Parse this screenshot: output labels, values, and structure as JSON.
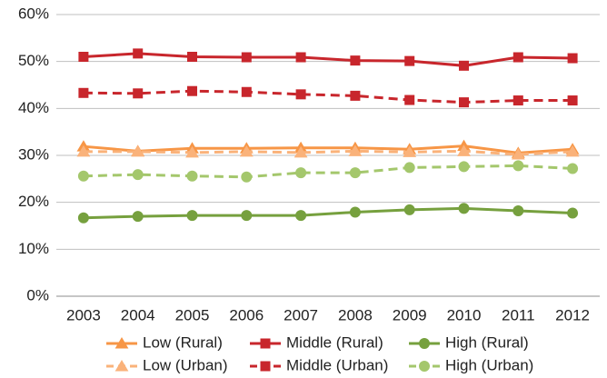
{
  "chart_data": {
    "type": "line",
    "categories": [
      "2003",
      "2004",
      "2005",
      "2006",
      "2007",
      "2008",
      "2009",
      "2010",
      "2011",
      "2012"
    ],
    "series": [
      {
        "name": "Low (Rural)",
        "color": "#f79646",
        "marker": "triangle",
        "dashed": false,
        "values": [
          31.9,
          30.9,
          31.5,
          31.5,
          31.6,
          31.6,
          31.3,
          32.0,
          30.5,
          31.3
        ]
      },
      {
        "name": "Middle (Rural)",
        "color": "#c8262c",
        "marker": "square",
        "dashed": false,
        "values": [
          51.0,
          51.7,
          51.0,
          50.9,
          50.9,
          50.2,
          50.1,
          49.1,
          50.9,
          50.7
        ]
      },
      {
        "name": "High (Rural)",
        "color": "#76a03e",
        "marker": "circle",
        "dashed": false,
        "values": [
          16.7,
          17.0,
          17.2,
          17.2,
          17.2,
          17.9,
          18.4,
          18.7,
          18.2,
          17.7
        ]
      },
      {
        "name": "Low (Urban)",
        "color": "#fab27a",
        "marker": "triangle",
        "dashed": true,
        "values": [
          30.8,
          30.8,
          30.6,
          30.8,
          30.6,
          30.9,
          30.7,
          30.9,
          30.2,
          30.8
        ]
      },
      {
        "name": "Middle (Urban)",
        "color": "#c8262c",
        "marker": "square",
        "dashed": true,
        "values": [
          43.3,
          43.2,
          43.7,
          43.5,
          43.0,
          42.7,
          41.8,
          41.3,
          41.7,
          41.7
        ]
      },
      {
        "name": "High (Urban)",
        "color": "#a4c76c",
        "marker": "circle",
        "dashed": true,
        "values": [
          25.6,
          25.9,
          25.6,
          25.4,
          26.3,
          26.3,
          27.4,
          27.6,
          27.8,
          27.2
        ]
      }
    ],
    "ylim": [
      0,
      60
    ],
    "yticks": [
      {
        "value": 0,
        "label": "0%"
      },
      {
        "value": 10,
        "label": "10%"
      },
      {
        "value": 20,
        "label": "20%"
      },
      {
        "value": 30,
        "label": "30%"
      },
      {
        "value": 40,
        "label": "40%"
      },
      {
        "value": 50,
        "label": "50%"
      },
      {
        "value": 60,
        "label": "60%"
      }
    ],
    "grid": true,
    "legend": "bottom"
  }
}
